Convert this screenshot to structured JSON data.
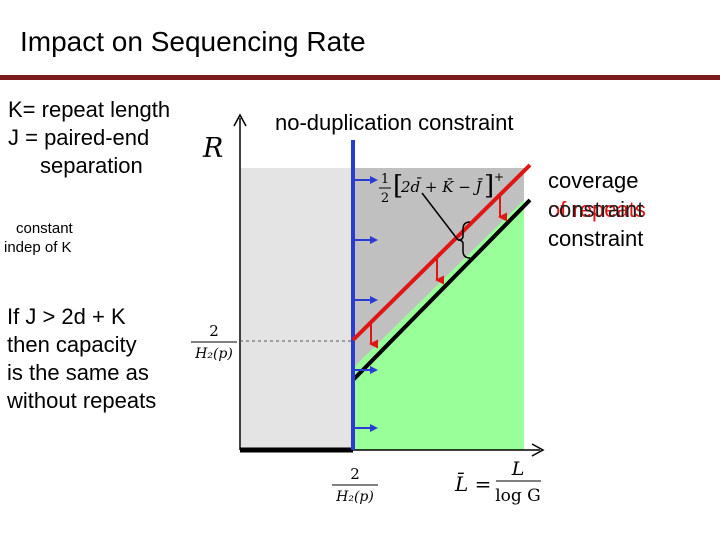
{
  "title": "Impact on Sequencing Rate",
  "definitions": {
    "line1": "K= repeat length",
    "line2": "J = paired-end",
    "line3": "separation"
  },
  "note": {
    "line1": "constant",
    "line2": "indep of K"
  },
  "statement": {
    "line1": "If J > 2d + K",
    "line2": "then capacity",
    "line3": "is the same as",
    "line4": "without repeats"
  },
  "labels": {
    "no_duplication": "no-duplication constraint",
    "coverage": "coverage",
    "of_repeats": "of repeats",
    "constraint_overlay": "constraint",
    "constraint": "constraint"
  },
  "math": {
    "y_axis": "R",
    "y_tick_num": "2",
    "y_tick_den": "H₂(p)",
    "x_tick_num": "2",
    "x_tick_den": "H₂(p)",
    "x_axis_lhs": "L̄ =",
    "x_axis_num": "L",
    "x_axis_den": "log G",
    "formula_frac_num": "1",
    "formula_frac_den": "2",
    "formula_body": "2d̄ + K̄ − J̄",
    "formula_sup": "+"
  },
  "colors": {
    "title_rule": "#7a1a1a",
    "light_region": "#e4e4e4",
    "gray_region": "#c0c0c0",
    "green_region": "#99ff99",
    "blue_line": "#2a3bd1",
    "red_line": "#e01515",
    "red_text": "#e01515"
  }
}
